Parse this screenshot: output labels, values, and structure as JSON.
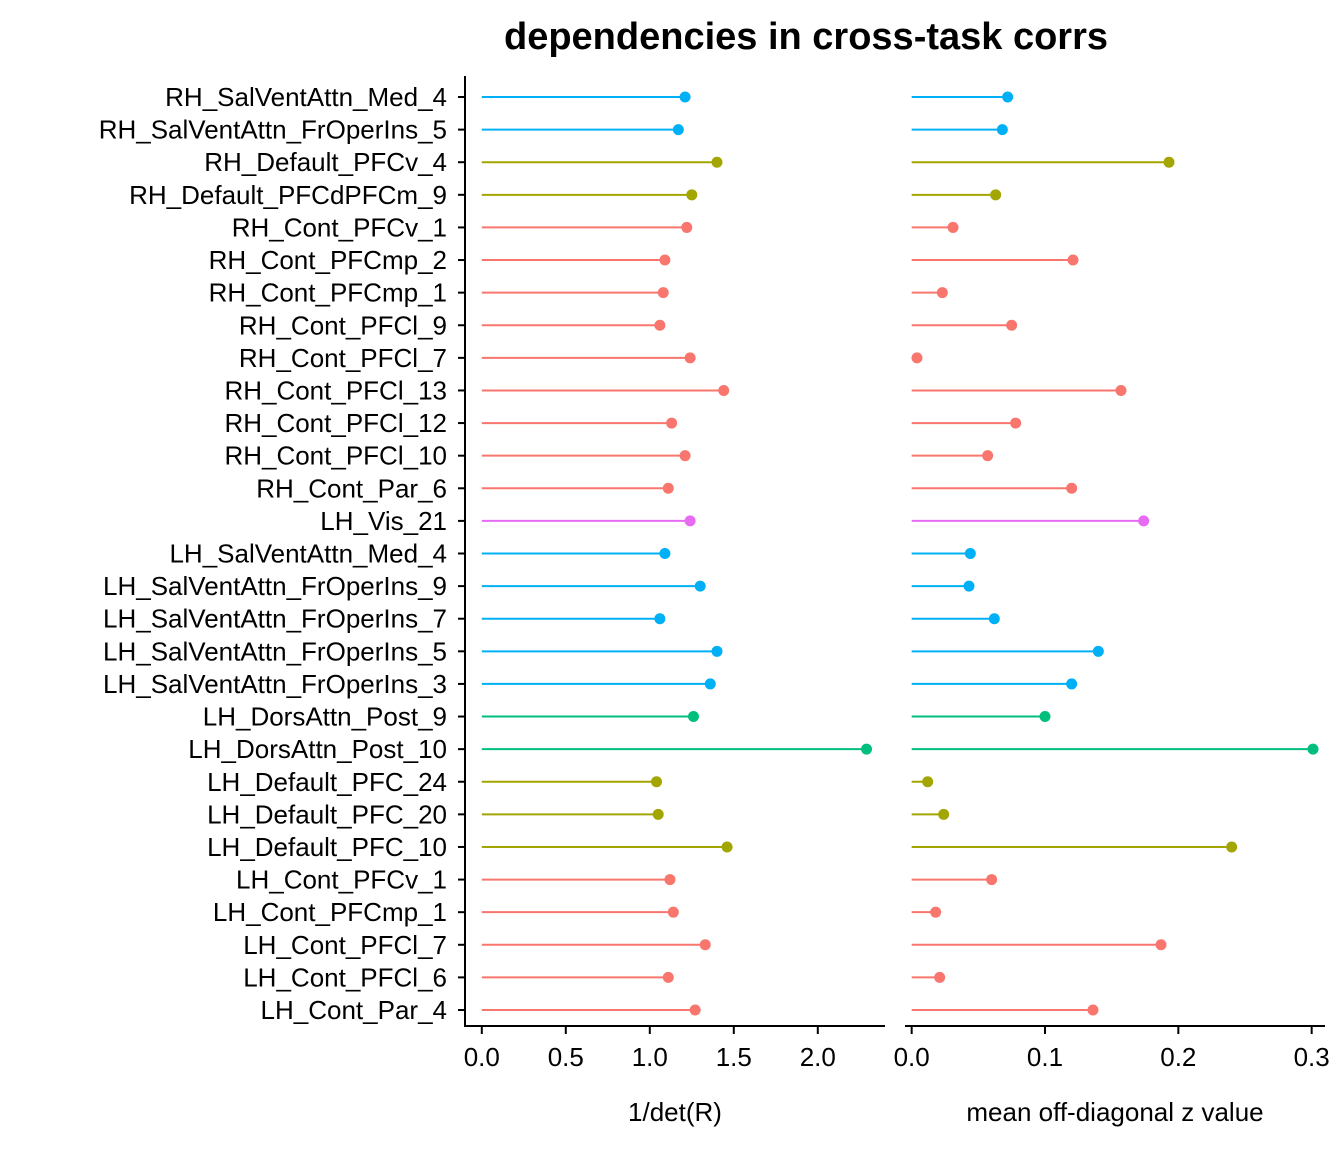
{
  "chart_data": {
    "type": "lollipop",
    "title": "dependencies in cross-task corrs",
    "categories": [
      "RH_SalVentAttn_Med_4",
      "RH_SalVentAttn_FrOperIns_5",
      "RH_Default_PFCv_4",
      "RH_Default_PFCdPFCm_9",
      "RH_Cont_PFCv_1",
      "RH_Cont_PFCmp_2",
      "RH_Cont_PFCmp_1",
      "RH_Cont_PFCl_9",
      "RH_Cont_PFCl_7",
      "RH_Cont_PFCl_13",
      "RH_Cont_PFCl_12",
      "RH_Cont_PFCl_10",
      "RH_Cont_Par_6",
      "LH_Vis_21",
      "LH_SalVentAttn_Med_4",
      "LH_SalVentAttn_FrOperIns_9",
      "LH_SalVentAttn_FrOperIns_7",
      "LH_SalVentAttn_FrOperIns_5",
      "LH_SalVentAttn_FrOperIns_3",
      "LH_DorsAttn_Post_9",
      "LH_DorsAttn_Post_10",
      "LH_Default_PFC_24",
      "LH_Default_PFC_20",
      "LH_Default_PFC_10",
      "LH_Cont_PFCv_1",
      "LH_Cont_PFCmp_1",
      "LH_Cont_PFCl_7",
      "LH_Cont_PFCl_6",
      "LH_Cont_Par_4"
    ],
    "network_colors": {
      "SalVentAttn": "#00b0f6",
      "Default": "#a3a500",
      "Cont": "#f8766d",
      "Vis": "#e76bf3",
      "DorsAttn": "#00bf7d"
    },
    "panels": [
      {
        "xlabel": "1/det(R)",
        "xlim": [
          -0.1,
          2.4
        ],
        "ticks": [
          0.0,
          0.5,
          1.0,
          1.5,
          2.0
        ],
        "tick_labels": [
          "0.0",
          "0.5",
          "1.0",
          "1.5",
          "2.0"
        ],
        "values": [
          1.21,
          1.17,
          1.4,
          1.25,
          1.22,
          1.09,
          1.08,
          1.06,
          1.24,
          1.44,
          1.13,
          1.21,
          1.11,
          1.24,
          1.09,
          1.3,
          1.06,
          1.4,
          1.36,
          1.26,
          2.29,
          1.04,
          1.05,
          1.46,
          1.12,
          1.14,
          1.33,
          1.11,
          1.27
        ]
      },
      {
        "xlabel": "mean off-diagonal z value",
        "xlim": [
          -0.005,
          0.31
        ],
        "ticks": [
          0.0,
          0.1,
          0.2,
          0.3
        ],
        "tick_labels": [
          "0.0",
          "0.1",
          "0.2",
          "0.3"
        ],
        "values": [
          0.072,
          0.068,
          0.193,
          0.063,
          0.031,
          0.121,
          0.023,
          0.075,
          0.004,
          0.157,
          0.078,
          0.057,
          0.12,
          0.174,
          0.044,
          0.043,
          0.062,
          0.14,
          0.12,
          0.1,
          0.301,
          0.012,
          0.024,
          0.24,
          0.06,
          0.018,
          0.187,
          0.021,
          0.136
        ]
      }
    ],
    "legend": "none",
    "grid": false
  }
}
